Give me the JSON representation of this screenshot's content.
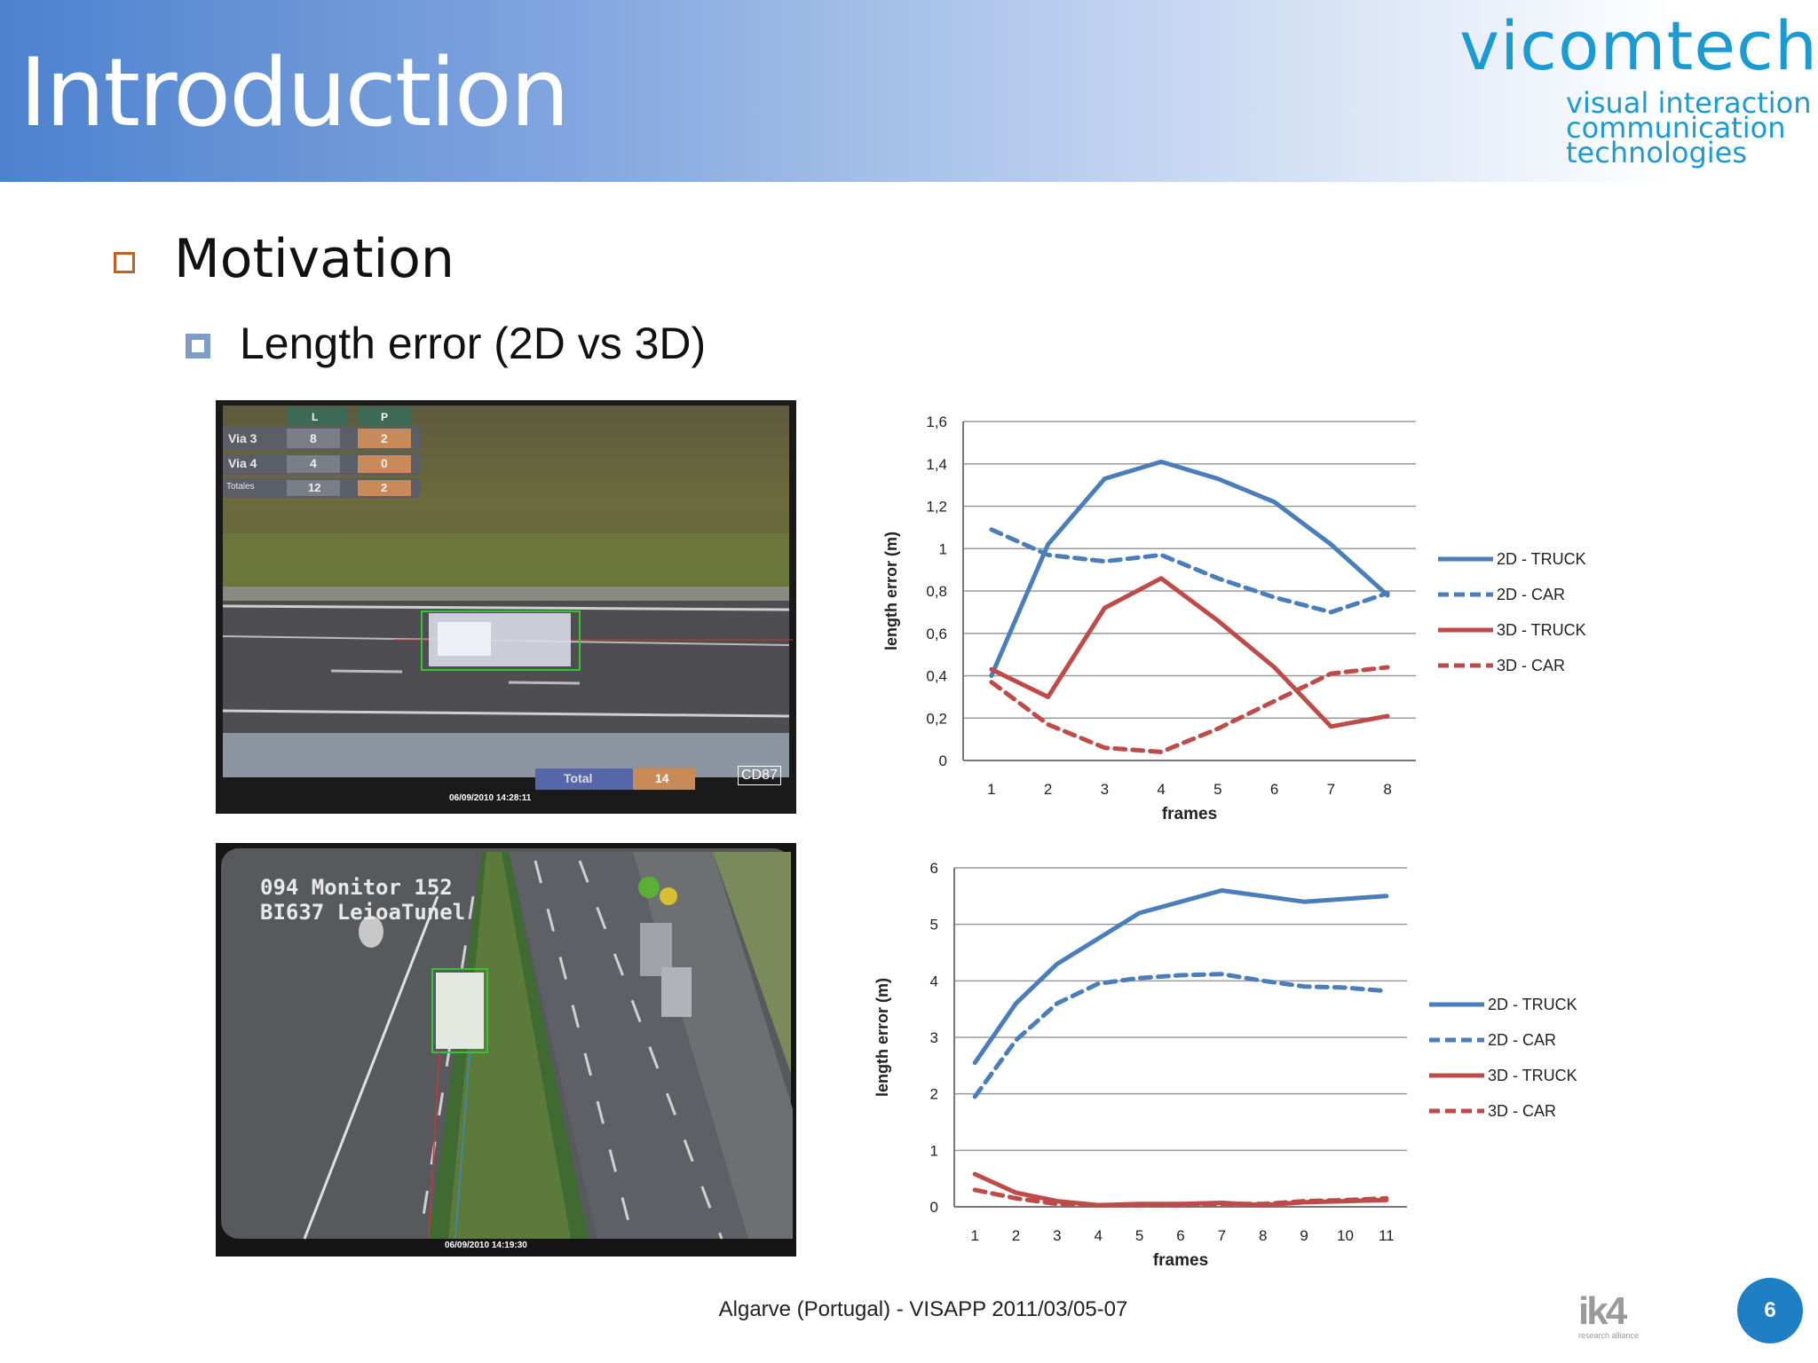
{
  "header": {
    "title": "Introduction"
  },
  "logo": {
    "name": "vicomtech",
    "tagline": [
      "visual interaction",
      "communication",
      "technologies"
    ]
  },
  "content": {
    "bullet1": "Motivation",
    "bullet2": "Length error (2D vs 3D)"
  },
  "photos": {
    "top": {
      "table_headers": [
        "L",
        "P"
      ],
      "table_rows": [
        [
          "Via 3",
          "8",
          "2"
        ],
        [
          "Via 4",
          "4",
          "0"
        ],
        [
          "Totales",
          "12",
          "2"
        ]
      ],
      "timestamp": "06/09/2010 14:28:11",
      "bottom_label": "Total",
      "bottom_value": "14",
      "camera": "CD87"
    },
    "bottom": {
      "overlay_line1": "094 Monitor 152",
      "overlay_line2": "BI637 LeioaTunel",
      "timestamp": "06/09/2010 14:19:30"
    }
  },
  "chart_data": [
    {
      "type": "line",
      "x": [
        1,
        2,
        3,
        4,
        5,
        6,
        7,
        8
      ],
      "xlabel": "frames",
      "ylabel": "length error (m)",
      "ylim": [
        0,
        1.6
      ],
      "yticks": [
        "0",
        "0,2",
        "0,4",
        "0,6",
        "0,8",
        "1",
        "1,2",
        "1,4",
        "1,6"
      ],
      "grid": "horizontal",
      "legend": "right",
      "series": [
        {
          "name": "2D - TRUCK",
          "style": "solid",
          "color": "#4a7ebb",
          "values": [
            0.4,
            1.02,
            1.33,
            1.41,
            1.33,
            1.22,
            1.02,
            0.78
          ]
        },
        {
          "name": "2D - CAR",
          "style": "dashed",
          "color": "#4a7ebb",
          "values": [
            1.09,
            0.97,
            0.94,
            0.97,
            0.86,
            0.77,
            0.7,
            0.79
          ]
        },
        {
          "name": "3D - TRUCK",
          "style": "solid",
          "color": "#be4b48",
          "values": [
            0.43,
            0.3,
            0.72,
            0.86,
            0.66,
            0.44,
            0.16,
            0.21
          ]
        },
        {
          "name": "3D - CAR",
          "style": "dashed",
          "color": "#be4b48",
          "values": [
            0.37,
            0.17,
            0.06,
            0.04,
            0.15,
            0.28,
            0.41,
            0.44
          ]
        }
      ]
    },
    {
      "type": "line",
      "x": [
        1,
        2,
        3,
        4,
        5,
        6,
        7,
        8,
        9,
        10,
        11
      ],
      "xlabel": "frames",
      "ylabel": "length error (m)",
      "ylim": [
        0,
        6
      ],
      "yticks": [
        "0",
        "1",
        "2",
        "3",
        "4",
        "5",
        "6"
      ],
      "grid": "horizontal",
      "legend": "right",
      "series": [
        {
          "name": "2D - TRUCK",
          "style": "solid",
          "color": "#4a7ebb",
          "values": [
            2.55,
            3.6,
            4.3,
            4.75,
            5.2,
            5.4,
            5.6,
            5.5,
            5.4,
            5.45,
            5.5
          ]
        },
        {
          "name": "2D - CAR",
          "style": "dashed",
          "color": "#4a7ebb",
          "values": [
            1.95,
            2.95,
            3.6,
            3.95,
            4.05,
            4.1,
            4.12,
            4.0,
            3.9,
            3.88,
            3.82
          ]
        },
        {
          "name": "3D - TRUCK",
          "style": "solid",
          "color": "#be4b48",
          "values": [
            0.58,
            0.25,
            0.1,
            0.03,
            0.05,
            0.05,
            0.07,
            0.03,
            0.08,
            0.1,
            0.12
          ]
        },
        {
          "name": "3D - CAR",
          "style": "dashed",
          "color": "#be4b48",
          "values": [
            0.3,
            0.15,
            0.05,
            0.03,
            0.03,
            0.03,
            0.05,
            0.05,
            0.1,
            0.12,
            0.15
          ]
        }
      ]
    }
  ],
  "footer": {
    "text": "Algarve (Portugal) - VISAPP 2011/03/05-07",
    "brand": "ik4",
    "brand_sub": "research alliance",
    "page_number": "6"
  }
}
